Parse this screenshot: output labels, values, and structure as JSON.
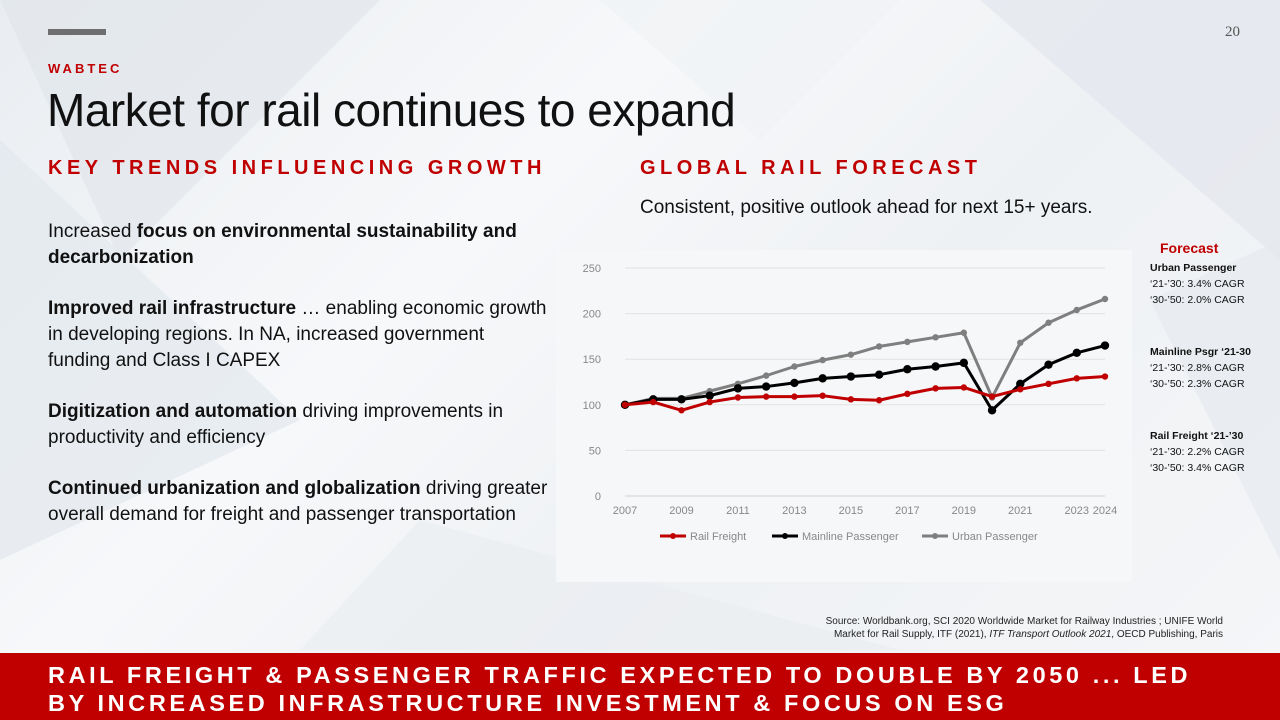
{
  "slide": {
    "page_number": "20",
    "brand": "WABTEC",
    "title": "Market for rail continues to expand",
    "left_heading": "KEY TRENDS INFLUENCING GROWTH",
    "right_heading": "GLOBAL RAIL FORECAST",
    "right_subtitle": "Consistent, positive outlook ahead for next 15+ years."
  },
  "trends": [
    {
      "pre": "Increased ",
      "bold": "focus on environmental sustainability and decarbonization",
      "rest": ""
    },
    {
      "pre": "",
      "bold": "Improved rail infrastructure",
      "rest": " … enabling economic growth in developing regions. In NA, increased government funding and Class I CAPEX"
    },
    {
      "pre": "",
      "bold": "Digitization and automation",
      "rest": " driving improvements in productivity and efficiency"
    },
    {
      "pre": "",
      "bold": "Continued urbanization and globalization",
      "rest": " driving greater overall demand for freight and passenger transportation"
    }
  ],
  "forecast": {
    "heading": "Forecast",
    "groups": [
      {
        "name": "Urban Passenger",
        "line1": "‘21-’30: 3.4% CAGR",
        "line2": "‘30-’50: 2.0% CAGR"
      },
      {
        "name": "Mainline Psgr ‘21-30",
        "line1": "‘21-’30: 2.8% CAGR",
        "line2": "‘30-’50: 2.3% CAGR"
      },
      {
        "name": "Rail Freight ‘21-’30",
        "line1": "‘21-’30: 2.2% CAGR",
        "line2": "‘30-’50: 3.4% CAGR"
      }
    ]
  },
  "source": {
    "line1": "Source: Worldbank.org, SCI 2020 Worldwide Market for Railway Industries ; UNIFE World",
    "line2_pre": "Market for Rail Supply, ITF (2021), ",
    "line2_italic": "ITF Transport Outlook 2021",
    "line2_post": ", OECD Publishing, Paris"
  },
  "banner": {
    "line1": "RAIL FREIGHT & PASSENGER TRAFFIC EXPECTED TO DOUBLE BY 2050 ... LED",
    "line2": "BY INCREASED INFRASTRUCTURE INVESTMENT & FOCUS ON ESG"
  },
  "colors": {
    "accent": "#c00000",
    "freight": "#c00000",
    "mainline": "#000000",
    "urban": "#7f7f7f"
  },
  "chart_data": {
    "type": "line",
    "x": [
      2007,
      2008,
      2009,
      2010,
      2011,
      2012,
      2013,
      2014,
      2015,
      2016,
      2017,
      2018,
      2019,
      2020,
      2021,
      2022,
      2023,
      2024
    ],
    "x_tick_labels": [
      "2007",
      "2009",
      "2011",
      "2013",
      "2015",
      "2017",
      "2019",
      "2021",
      "2023",
      "2024"
    ],
    "ylim": [
      0,
      250
    ],
    "y_ticks": [
      0,
      50,
      100,
      150,
      200,
      250
    ],
    "grid": "horizontal",
    "legend_position": "bottom",
    "series": [
      {
        "name": "Rail Freight",
        "color": "#c00000",
        "values": [
          100,
          103,
          94,
          103,
          108,
          109,
          109,
          110,
          106,
          105,
          112,
          118,
          119,
          109,
          117,
          123,
          129,
          131
        ]
      },
      {
        "name": "Mainline Passenger",
        "color": "#000000",
        "values": [
          100,
          106,
          106,
          110,
          118,
          120,
          124,
          129,
          131,
          133,
          139,
          142,
          146,
          94,
          123,
          144,
          157,
          165
        ]
      },
      {
        "name": "Urban Passenger",
        "color": "#7f7f7f",
        "values": [
          100,
          107,
          107,
          115,
          123,
          132,
          142,
          149,
          155,
          164,
          169,
          174,
          179,
          108,
          168,
          190,
          204,
          216
        ]
      }
    ]
  }
}
